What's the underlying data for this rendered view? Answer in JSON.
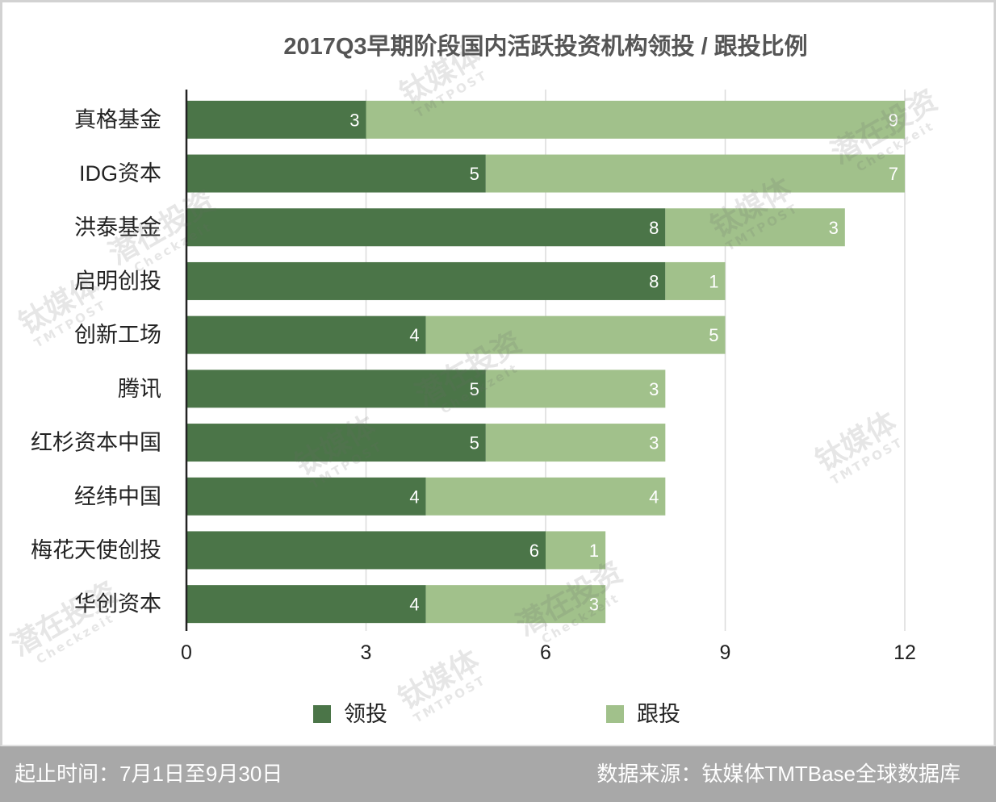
{
  "chart_data": {
    "type": "bar",
    "orientation": "horizontal",
    "stacked": true,
    "title": "2017Q3早期阶段国内活跃投资机构领投 / 跟投比例",
    "categories": [
      "真格基金",
      "IDG资本",
      "洪泰基金",
      "启明创投",
      "创新工场",
      "腾讯",
      "红杉资本中国",
      "经纬中国",
      "梅花天使创投",
      "华创资本"
    ],
    "series": [
      {
        "name": "领投",
        "color": "#4b7548",
        "values": [
          3,
          5,
          8,
          8,
          4,
          5,
          5,
          4,
          6,
          4
        ]
      },
      {
        "name": "跟投",
        "color": "#a1c18b",
        "values": [
          9,
          7,
          3,
          1,
          5,
          3,
          3,
          4,
          1,
          3
        ]
      }
    ],
    "xticks": [
      0,
      3,
      6,
      9,
      12
    ],
    "xlim": [
      0,
      12
    ],
    "grid": true,
    "legend_position": "bottom"
  },
  "footer": {
    "period": "起止时间：7月1日至9月30日",
    "source": "数据来源：钛媒体TMTBase全球数据库"
  },
  "watermarks": {
    "tmtpost": {
      "main": "钛媒体",
      "sub": "TMTPOST"
    },
    "checkzeit": {
      "main": "潜在投资",
      "sub": "Checkzeit"
    }
  }
}
